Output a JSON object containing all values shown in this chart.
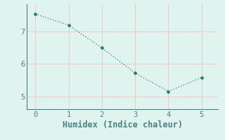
{
  "x": [
    0,
    1,
    2,
    3,
    4,
    5
  ],
  "y": [
    7.55,
    7.2,
    6.5,
    5.72,
    5.15,
    5.58
  ],
  "line_color": "#2a7a6f",
  "marker_color": "#2a7a6f",
  "bg_color": "#dff4ef",
  "grid_color": "#f0c8c8",
  "axis_color": "#4a8080",
  "tick_color": "#4a8080",
  "xlabel": "Humidex (Indice chaleur)",
  "xlabel_fontsize": 8.5,
  "yticks": [
    5,
    6,
    7
  ],
  "xticks": [
    0,
    1,
    2,
    3,
    4,
    5
  ],
  "ylim": [
    4.6,
    7.85
  ],
  "xlim": [
    -0.25,
    5.5
  ]
}
